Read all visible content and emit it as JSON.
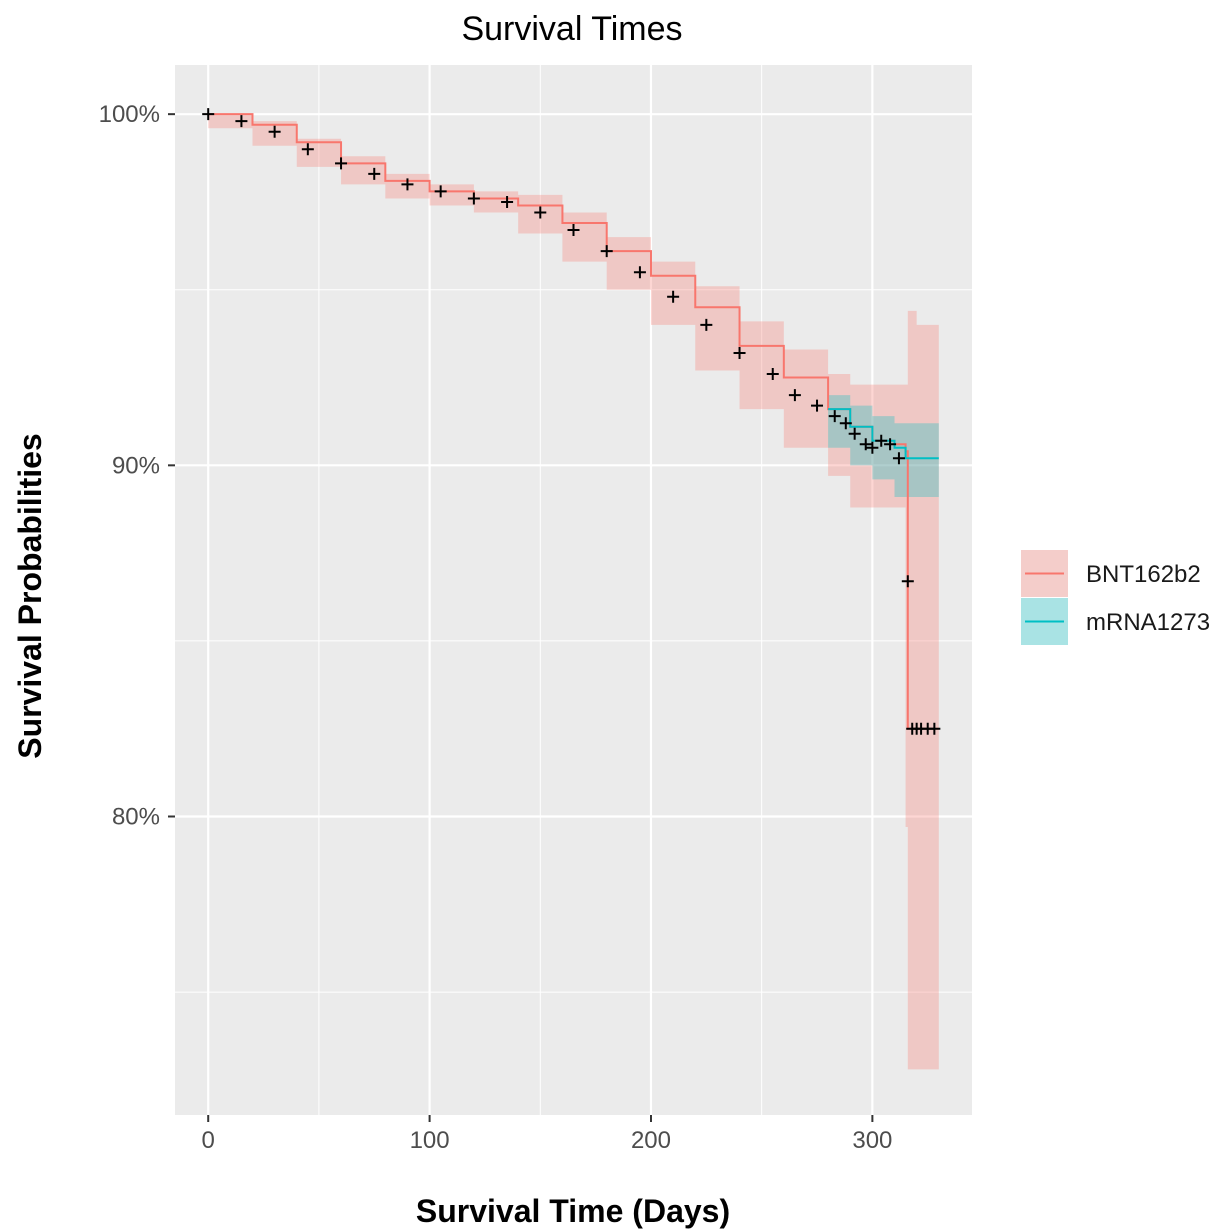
{
  "chart_data": {
    "type": "line",
    "title": "Survival Times",
    "xlabel": "Survival Time (Days)",
    "ylabel": "Survival Probabilities",
    "xlim": [
      -15,
      345
    ],
    "ylim": [
      0.715,
      1.014
    ],
    "x_ticks": [
      0,
      100,
      200,
      300
    ],
    "x_tick_labels": [
      "0",
      "100",
      "200",
      "300"
    ],
    "y_ticks": [
      0.8,
      0.9,
      1.0
    ],
    "y_tick_labels": [
      "80%",
      "90%",
      "100%"
    ],
    "x_minor_ticks": [
      50,
      150,
      250
    ],
    "y_minor_ticks": [
      0.75,
      0.85,
      0.95
    ],
    "grid": true,
    "legend_position": "right",
    "colors": {
      "panel_background": "#EBEBEB",
      "grid": "#FFFFFF",
      "censor_mark": "#000000"
    },
    "series": [
      {
        "name": "BNT162b2",
        "color": "#F8766D",
        "fill": "#F8766D",
        "x": [
          0,
          20,
          40,
          60,
          80,
          100,
          120,
          140,
          160,
          180,
          200,
          220,
          240,
          260,
          280,
          290,
          300,
          310,
          315,
          316,
          320,
          325,
          330
        ],
        "y": [
          1.0,
          0.997,
          0.992,
          0.986,
          0.981,
          0.978,
          0.976,
          0.974,
          0.969,
          0.961,
          0.954,
          0.945,
          0.934,
          0.925,
          0.916,
          0.911,
          0.907,
          0.906,
          0.904,
          0.825,
          0.825,
          0.825,
          0.825
        ],
        "lower": [
          1.0,
          0.996,
          0.991,
          0.985,
          0.98,
          0.976,
          0.974,
          0.972,
          0.966,
          0.958,
          0.95,
          0.94,
          0.927,
          0.916,
          0.905,
          0.897,
          0.888,
          0.888,
          0.888,
          0.797,
          0.728,
          0.728,
          0.728
        ],
        "upper": [
          1.0,
          0.998,
          0.993,
          0.988,
          0.983,
          0.98,
          0.978,
          0.977,
          0.972,
          0.965,
          0.958,
          0.951,
          0.941,
          0.933,
          0.926,
          0.923,
          0.923,
          0.923,
          0.923,
          0.944,
          0.94,
          0.94,
          0.94
        ]
      },
      {
        "name": "mRNA1273",
        "color": "#00BFC4",
        "fill": "#00BFC4",
        "x": [
          280,
          290,
          300,
          310,
          315,
          320,
          330
        ],
        "y": [
          0.916,
          0.911,
          0.907,
          0.905,
          0.902,
          0.902,
          0.902
        ],
        "lower": [
          0.912,
          0.905,
          0.9,
          0.896,
          0.891,
          0.891,
          0.891
        ],
        "upper": [
          0.92,
          0.917,
          0.914,
          0.912,
          0.912,
          0.912,
          0.912
        ]
      }
    ],
    "censor_points": {
      "x": [
        0,
        15,
        30,
        45,
        60,
        75,
        90,
        105,
        120,
        135,
        150,
        165,
        180,
        195,
        210,
        225,
        240,
        255,
        265,
        275,
        283,
        288,
        292,
        297,
        300,
        304,
        308,
        312,
        316,
        318,
        320,
        322,
        325,
        328
      ],
      "y": [
        1.0,
        0.998,
        0.995,
        0.99,
        0.986,
        0.983,
        0.98,
        0.978,
        0.976,
        0.975,
        0.972,
        0.967,
        0.961,
        0.955,
        0.948,
        0.94,
        0.932,
        0.926,
        0.92,
        0.917,
        0.914,
        0.912,
        0.909,
        0.906,
        0.905,
        0.907,
        0.906,
        0.902,
        0.867,
        0.825,
        0.825,
        0.825,
        0.825,
        0.825
      ]
    }
  }
}
